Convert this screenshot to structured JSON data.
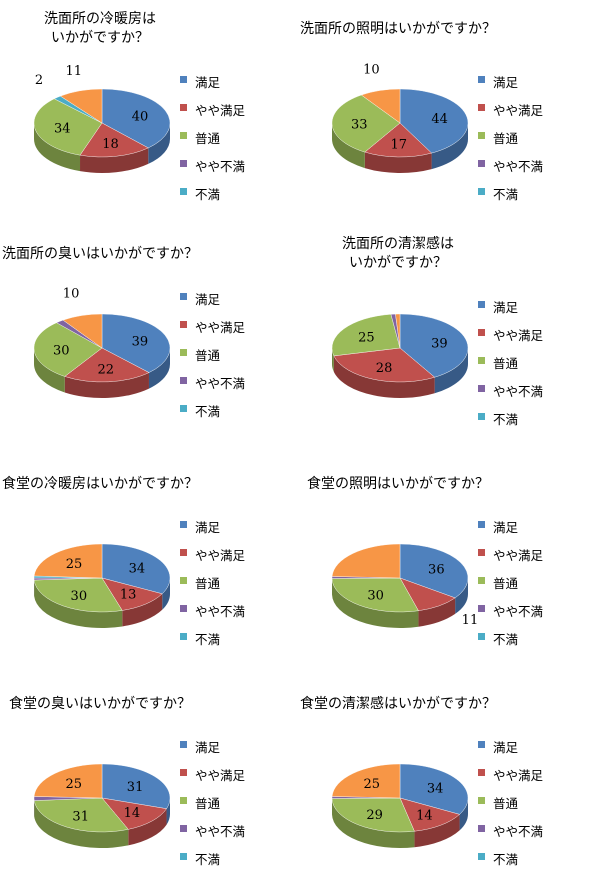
{
  "legend_labels": [
    "満足",
    "やや満足",
    "普通",
    "やや不満",
    "不満"
  ],
  "colors": {
    "top": [
      "#4f81bd",
      "#c0504d",
      "#9bbb59",
      "#8064a2",
      "#4bacc6",
      "#f79646"
    ],
    "side": [
      "#375a86",
      "#873836",
      "#6d843e",
      "#5a4672",
      "#35798b",
      "#ad6a31"
    ]
  },
  "chart_data": [
    {
      "type": "pie",
      "title": "洗面所の冷暖房は\nいかがですか？",
      "categories": [
        "満足",
        "やや満足",
        "普通",
        "やや不満",
        "不満",
        ""
      ],
      "values": [
        40,
        18,
        34,
        0,
        2,
        11
      ],
      "labels": [
        "40",
        "18",
        "34",
        "",
        "2",
        "11"
      ]
    },
    {
      "type": "pie",
      "title": "洗面所の照明はいかがですか？",
      "categories": [
        "満足",
        "やや満足",
        "普通",
        "やや不満",
        "不満",
        ""
      ],
      "values": [
        44,
        17,
        33,
        0,
        0,
        10
      ],
      "labels": [
        "44",
        "17",
        "33",
        "",
        "",
        "10"
      ]
    },
    {
      "type": "pie",
      "title": "洗面所の臭いはいかがですか？",
      "categories": [
        "満足",
        "やや満足",
        "普通",
        "やや不満",
        "不満",
        ""
      ],
      "values": [
        39,
        22,
        30,
        2,
        0,
        10
      ],
      "labels": [
        "39",
        "22",
        "30",
        "",
        "",
        "10"
      ]
    },
    {
      "type": "pie",
      "title": "洗面所の清潔感は\nいかがですか？",
      "categories": [
        "満足",
        "やや満足",
        "普通",
        "やや不満",
        "不満",
        ""
      ],
      "values": [
        39,
        28,
        25,
        1,
        0,
        1
      ],
      "labels": [
        "39",
        "28",
        "25",
        "",
        "",
        ""
      ]
    },
    {
      "type": "pie",
      "title": "食堂の冷暖房はいかがですか？",
      "categories": [
        "満足",
        "やや満足",
        "普通",
        "やや不満",
        "不満",
        ""
      ],
      "values": [
        34,
        13,
        30,
        1,
        1,
        25
      ],
      "labels": [
        "34",
        "13",
        "30",
        "",
        "",
        "25"
      ]
    },
    {
      "type": "pie",
      "title": "食堂の照明はいかがですか？",
      "categories": [
        "満足",
        "やや満足",
        "普通",
        "やや不満",
        "不満",
        ""
      ],
      "values": [
        36,
        11,
        30,
        1,
        0,
        25
      ],
      "labels": [
        "36",
        "11",
        "30",
        "",
        "",
        ""
      ]
    },
    {
      "type": "pie",
      "title": "食堂の臭いはいかがですか？",
      "categories": [
        "満足",
        "やや満足",
        "普通",
        "やや不満",
        "不満",
        ""
      ],
      "values": [
        31,
        14,
        31,
        2,
        0,
        25
      ],
      "labels": [
        "31",
        "14",
        "31",
        "",
        "",
        "25"
      ]
    },
    {
      "type": "pie",
      "title": "食堂の清潔感はいかがですか？",
      "categories": [
        "満足",
        "やや満足",
        "普通",
        "やや不満",
        "不満",
        ""
      ],
      "values": [
        34,
        14,
        29,
        1,
        0,
        25
      ],
      "labels": [
        "34",
        "14",
        "29",
        "",
        "",
        "25"
      ]
    }
  ]
}
